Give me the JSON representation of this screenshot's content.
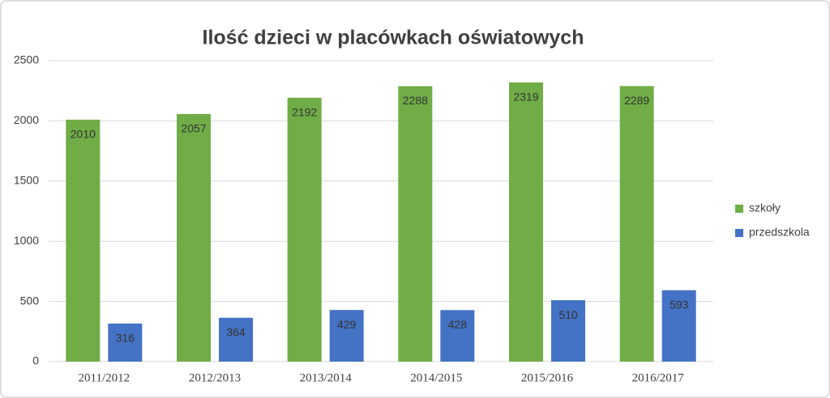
{
  "chart_data": {
    "type": "bar",
    "title": "Ilość dzieci w placówkach oświatowych",
    "categories": [
      "2011/2012",
      "2012/2013",
      "2013/2014",
      "2014/2015",
      "2015/2016",
      "2016/2017"
    ],
    "series": [
      {
        "name": "szkoły",
        "color": "#70ad47",
        "values": [
          2010,
          2057,
          2192,
          2288,
          2319,
          2289
        ]
      },
      {
        "name": "przedszkola",
        "color": "#4472c4",
        "values": [
          316,
          364,
          429,
          428,
          510,
          593
        ]
      }
    ],
    "ylim": [
      0,
      2500
    ],
    "yticks": [
      0,
      500,
      1000,
      1500,
      2000,
      2500
    ],
    "grid": true,
    "legend": "right"
  }
}
